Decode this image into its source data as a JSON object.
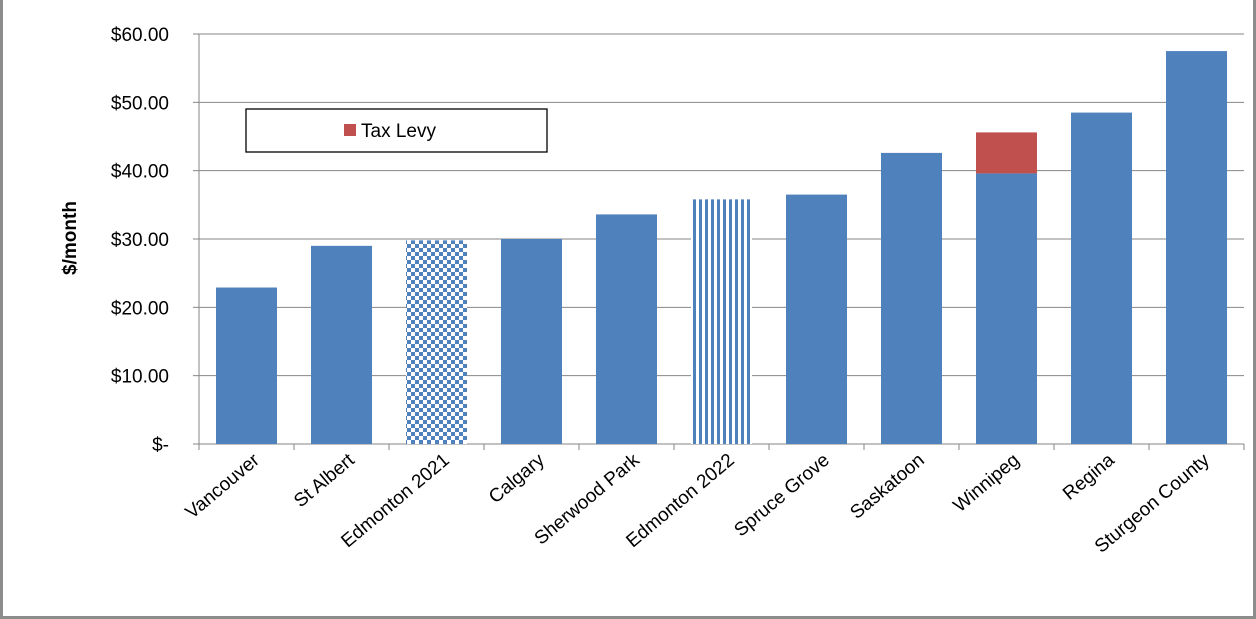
{
  "chart_data": {
    "type": "bar",
    "stacked": true,
    "ylabel": "$/month",
    "ylim": [
      0,
      60
    ],
    "y_ticks": [
      {
        "value": 0,
        "label": "$-"
      },
      {
        "value": 10,
        "label": "$10.00"
      },
      {
        "value": 20,
        "label": "$20.00"
      },
      {
        "value": 30,
        "label": "$30.00"
      },
      {
        "value": 40,
        "label": "$40.00"
      },
      {
        "value": 50,
        "label": "$50.00"
      },
      {
        "value": 60,
        "label": "$60.00"
      }
    ],
    "grid": true,
    "categories": [
      "Vancouver",
      "St Albert",
      "Edmonton 2021",
      "Calgary",
      "Sherwood Park",
      "Edmonton 2022",
      "Spruce Grove",
      "Saskatoon",
      "Winnipeg",
      "Regina",
      "Sturgeon County"
    ],
    "patterns": [
      "solid",
      "solid",
      "checker",
      "solid",
      "solid",
      "vertical-stripes",
      "solid",
      "solid",
      "solid",
      "solid",
      "solid"
    ],
    "series": [
      {
        "values": [
          22.9,
          29.0,
          29.8,
          30.0,
          33.6,
          35.8,
          36.5,
          42.6,
          39.6,
          48.5,
          57.5
        ],
        "color": "#4f81bd"
      },
      {
        "name": "Tax Levy",
        "values": [
          0,
          0,
          0,
          0,
          0,
          0,
          0,
          0,
          6.0,
          0,
          0
        ],
        "color": "#c0504d"
      }
    ],
    "legend": {
      "position": "upper-left",
      "entries": [
        "Tax Levy"
      ]
    }
  }
}
